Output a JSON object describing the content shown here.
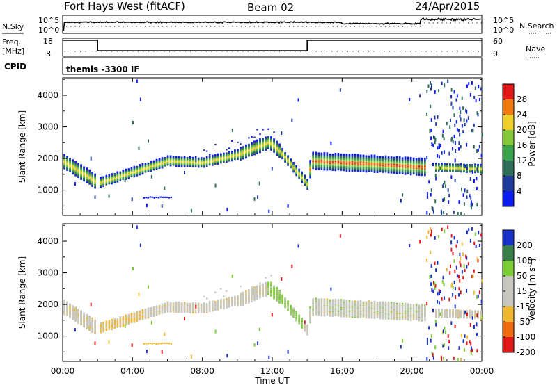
{
  "header": {
    "title": "Fort Hays West (fitACF)",
    "beam": "Beam 02",
    "date": "24/Apr/2015"
  },
  "top_panels": {
    "nsky_label": "N.Sky",
    "nsky_ticks": [
      "10^5",
      "10^0"
    ],
    "nsearch_label": "N.Search",
    "nsearch_ticks": [
      "10^5",
      "10^0"
    ],
    "freq_label": "Freq.",
    "freq_unit": "[MHz]",
    "freq_ticks": [
      "18",
      "8"
    ],
    "nave_label": "Nave",
    "nave_ticks": [
      "60",
      "0"
    ],
    "cpid_label": "CPID",
    "cpid_text": "themis -3300 IF",
    "freq_steps_hours": [
      {
        "start": 0.0,
        "end": 2.0,
        "level": "high"
      },
      {
        "start": 2.0,
        "end": 14.0,
        "level": "low"
      },
      {
        "start": 14.0,
        "end": 24.0,
        "level": "high"
      }
    ]
  },
  "chart_data": [
    {
      "type": "heatmap",
      "title": "Power",
      "ylabel": "Slant Range [km]",
      "xlabel": "Time UT",
      "x_ticks": [
        "00:00",
        "04:00",
        "08:00",
        "12:00",
        "16:00",
        "20:00",
        "00:00"
      ],
      "y_ticks": [
        "1000",
        "2000",
        "3000",
        "4000"
      ],
      "xlim_hours": [
        0,
        24
      ],
      "ylim_km": [
        200,
        4550
      ],
      "colorbar_label": "Power [dB]",
      "colorbar_ticks": [
        "4",
        "8",
        "12",
        "16",
        "20",
        "24",
        "28"
      ],
      "colors": [
        "#0a1cf0",
        "#203a9c",
        "#2e6e58",
        "#3aa24a",
        "#86c83a",
        "#f0d02a",
        "#f07a10",
        "#e01818"
      ],
      "echo_band_center_km": [
        [
          0,
          1950
        ],
        [
          2,
          1250
        ],
        [
          4,
          1600
        ],
        [
          6,
          1950
        ],
        [
          8,
          1900
        ],
        [
          10,
          2150
        ],
        [
          11.8,
          2550
        ],
        [
          12.5,
          2200
        ],
        [
          14,
          1200
        ],
        [
          14.2,
          1950
        ],
        [
          18,
          1850
        ],
        [
          20.8,
          1750
        ],
        [
          21.2,
          1750
        ],
        [
          24,
          1700
        ]
      ]
    },
    {
      "type": "heatmap",
      "title": "Velocity",
      "ylabel": "Slant Range [km]",
      "xlabel": "Time UT",
      "x_ticks": [
        "00:00",
        "04:00",
        "08:00",
        "12:00",
        "16:00",
        "20:00",
        "00:00"
      ],
      "y_ticks": [
        "1000",
        "2000",
        "3000",
        "4000"
      ],
      "xlim_hours": [
        0,
        24
      ],
      "ylim_km": [
        200,
        4550
      ],
      "colorbar_label": "Velocity [m s^-1]",
      "colorbar_ticks": [
        "200",
        "100",
        "50",
        "15",
        "-15",
        "-50",
        "-100",
        "-200"
      ],
      "colors": [
        "#1a30c8",
        "#3a7e4a",
        "#7ccc38",
        "#c8c8c0",
        "#c8c8c0",
        "#f0b830",
        "#f06a10",
        "#e01818"
      ]
    }
  ],
  "x_axis_title": "Time UT"
}
